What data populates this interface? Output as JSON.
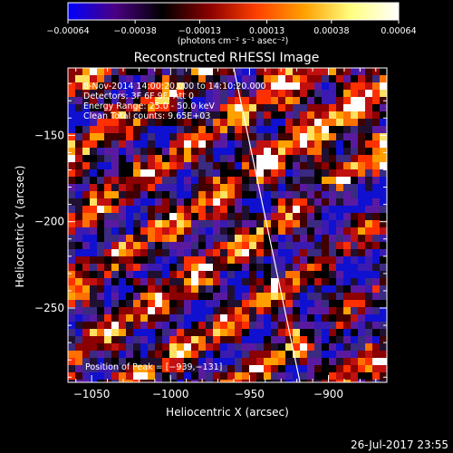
{
  "chart_data": {
    "type": "heatmap",
    "title": "Reconstructed RHESSI Image",
    "xlabel": "Heliocentric X (arcsec)",
    "ylabel": "Heliocentric Y (arcsec)",
    "xlim": [
      -1065,
      -863
    ],
    "ylim": [
      -293,
      -111
    ],
    "x_ticks": [
      -1050,
      -1000,
      -950,
      -900
    ],
    "x_tick_labels": [
      "−1050",
      "−1000",
      "−950",
      "−900"
    ],
    "y_ticks": [
      -150,
      -200,
      -250
    ],
    "y_tick_labels": [
      "−150",
      "−200",
      "−250"
    ],
    "colorbar": {
      "range": [
        -0.00064,
        0.00064
      ],
      "ticks": [
        -0.00064,
        -0.00038,
        -0.00013,
        0.00013,
        0.00038,
        0.00064
      ],
      "tick_labels": [
        "−0.00064",
        "−0.00038",
        "−0.00013",
        "0.00013",
        "0.00038",
        "0.00064"
      ],
      "units_label": "(photons cm⁻² s⁻¹ asec⁻²)",
      "colors": [
        "#0000ff",
        "#4b0082",
        "#000000",
        "#8b0000",
        "#ff4000",
        "#ffa000",
        "#ffff80",
        "#ffffff"
      ]
    },
    "annotations": [
      "8-Nov-2014 14:00:20.000 to 14:10:20.000",
      "Detectors: 3F 6F 9F, Att 0",
      "Energy Range: 25.0 - 50.0 keV",
      "Clean     Total counts: 9.65E+03"
    ],
    "peak_label": "Position of Peak = [−939,−131]",
    "limb_line": {
      "x": [
        -960,
        -918
      ],
      "y": [
        -111,
        -293
      ]
    }
  },
  "footer": {
    "timestamp": "26-Jul-2017 23:55"
  }
}
